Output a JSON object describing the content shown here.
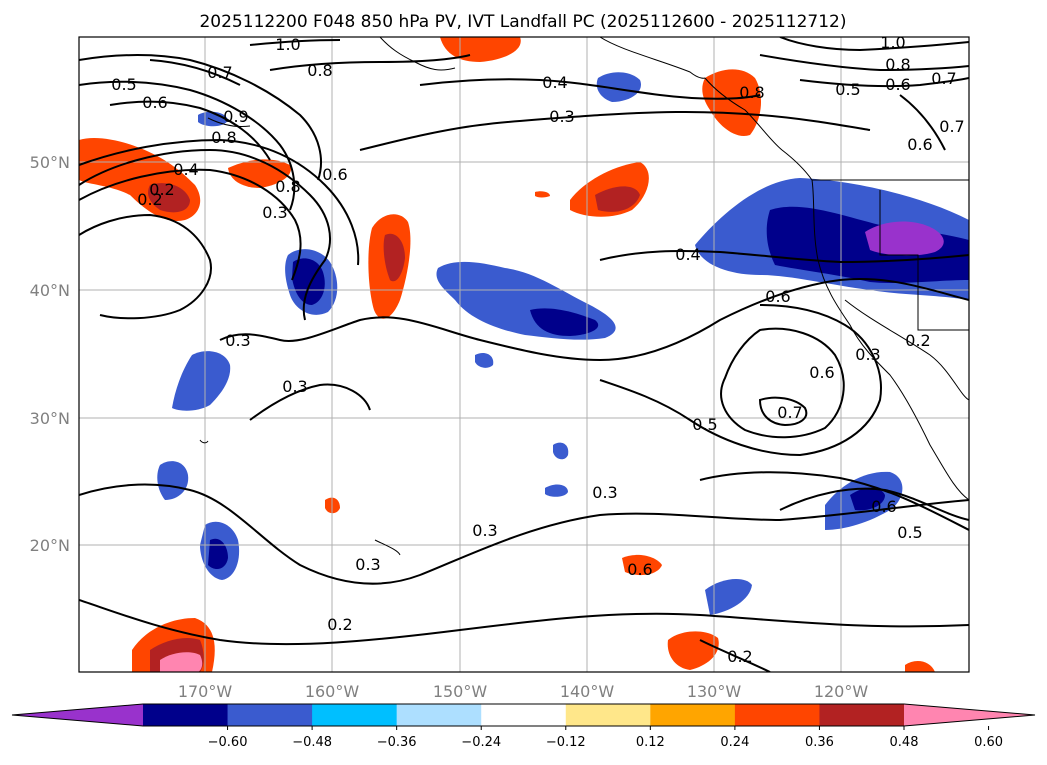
{
  "title": "2025112200 F048 850 hPa PV, IVT Landfall PC (2025112600 - 2025112712)",
  "map": {
    "lat_labels": [
      "50°N",
      "40°N",
      "30°N",
      "20°N"
    ],
    "lon_labels": [
      "170°W",
      "160°W",
      "150°W",
      "140°W",
      "130°W",
      "120°W"
    ],
    "gridlines": true,
    "contour_labels": [
      "1.0",
      "0.7",
      "0.8",
      "0.5",
      "0.6",
      "0.4",
      "0.3",
      "0.2",
      "0.9",
      "0.8",
      "0.4",
      "0.2",
      "0.8",
      "0.3",
      "0.6",
      "0.4",
      "0.6",
      "0.3",
      "0.3",
      "0.5",
      "0.7",
      "0.6",
      "0.3",
      "0.2",
      "0.3",
      "0.3",
      "0.3",
      "0.2",
      "0.6",
      "0.5",
      "0.2",
      "0.6",
      "1.0",
      "0.8",
      "0.7",
      "0.5",
      "0.6",
      "0.7",
      "0.6",
      "0.8"
    ]
  },
  "colorbar": {
    "ticks": [
      "−0.60",
      "−0.48",
      "−0.36",
      "−0.24",
      "−0.12",
      "0.12",
      "0.24",
      "0.36",
      "0.48",
      "0.60"
    ],
    "colors": [
      "#9932CC",
      "#00008B",
      "#3A5BCF",
      "#00BFFF",
      "#ADDFFF",
      "#FFFFFF",
      "#FFE78A",
      "#FFA500",
      "#FF4500",
      "#B22222",
      "#FF85B0"
    ],
    "extend": "both"
  }
}
